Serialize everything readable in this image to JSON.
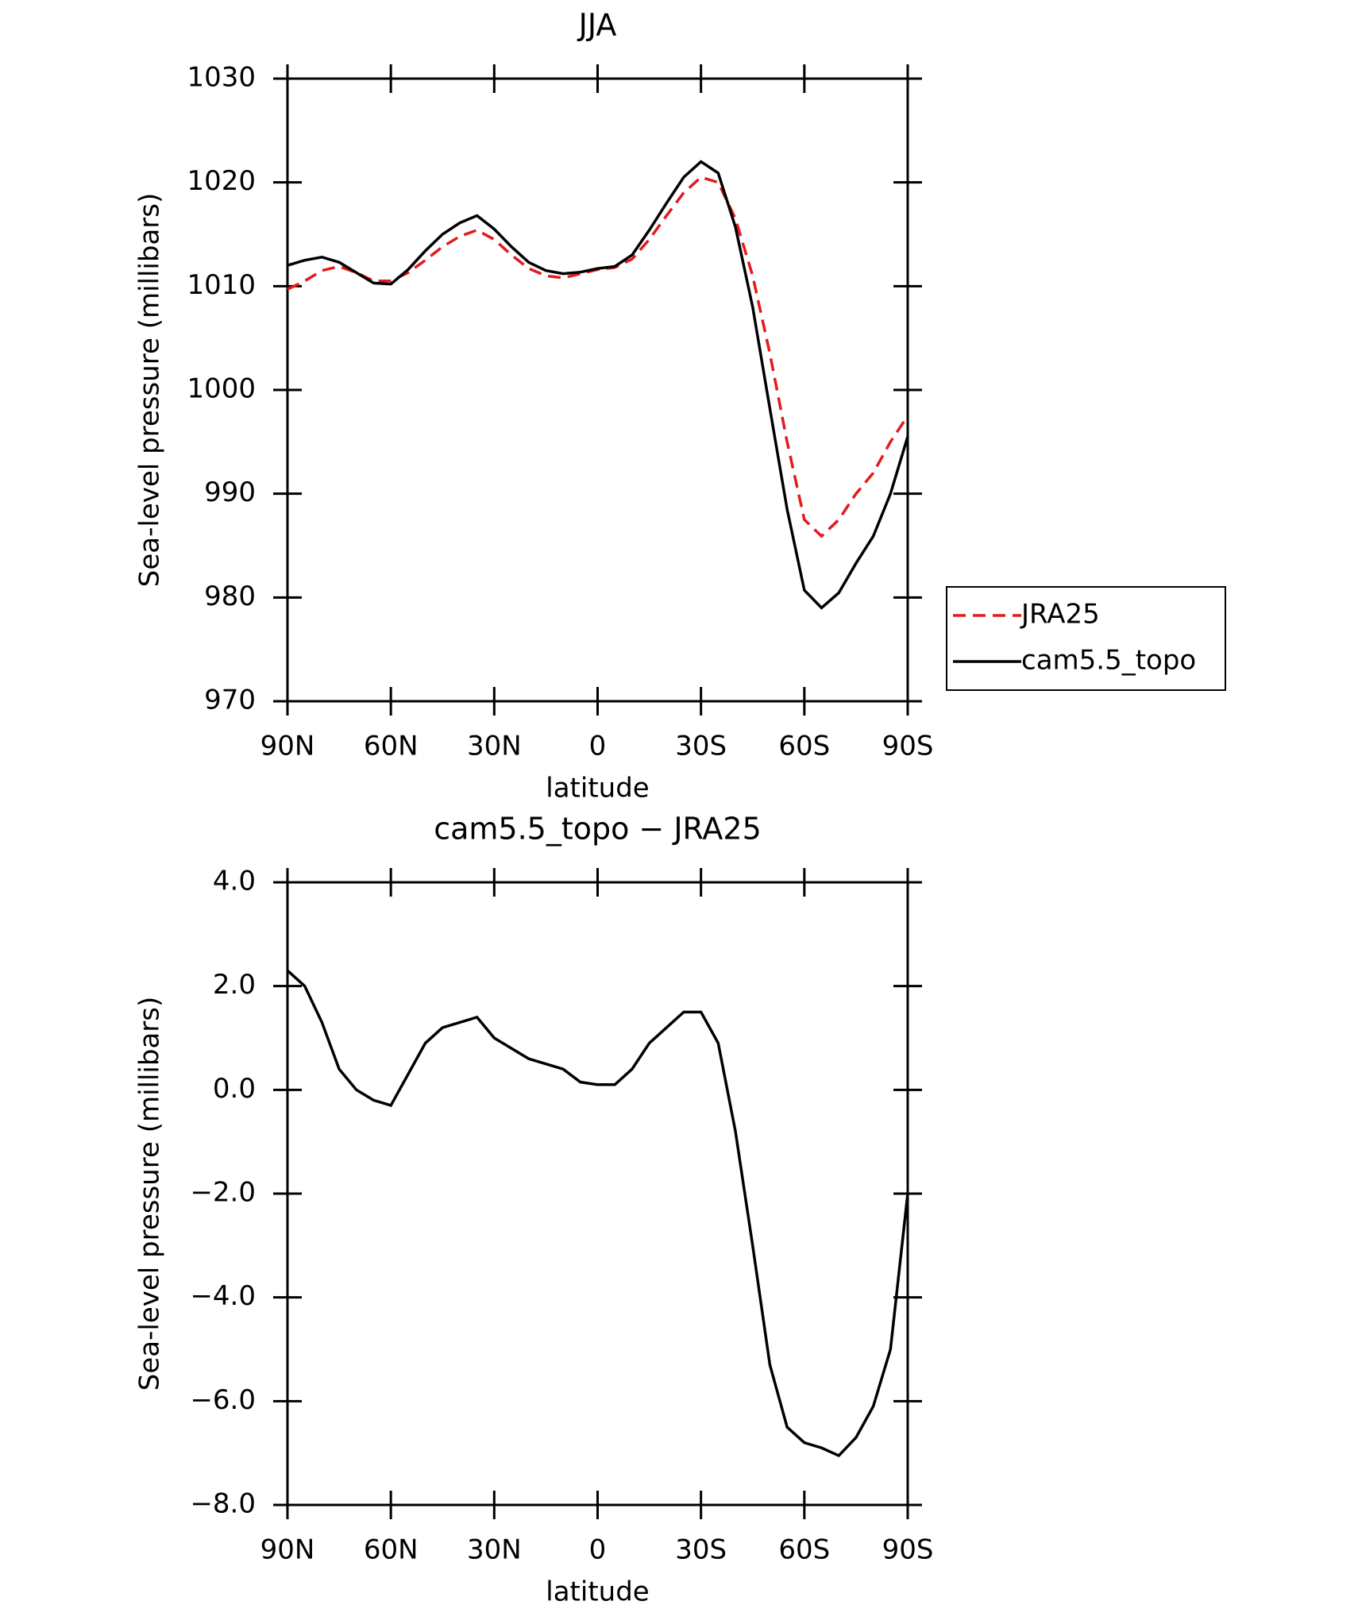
{
  "chart_data": [
    {
      "type": "line",
      "title": "JJA",
      "xlabel": "latitude",
      "ylabel": "Sea-level pressure (millibars)",
      "x": [
        90,
        85,
        80,
        75,
        70,
        65,
        60,
        55,
        50,
        45,
        40,
        35,
        30,
        25,
        20,
        15,
        10,
        5,
        0,
        -5,
        -10,
        -15,
        -20,
        -25,
        -30,
        -35,
        -40,
        -45,
        -50,
        -55,
        -60,
        -65,
        -70,
        -75,
        -80,
        -85,
        -90
      ],
      "xlim": [
        90,
        -90
      ],
      "xticks": [
        {
          "value": 90,
          "label": "90N"
        },
        {
          "value": 60,
          "label": "60N"
        },
        {
          "value": 30,
          "label": "30N"
        },
        0,
        {
          "value": -30,
          "label": "30S"
        },
        {
          "value": -60,
          "label": "60S"
        },
        {
          "value": -90,
          "label": "90S"
        }
      ],
      "ylim": [
        970,
        1030
      ],
      "yticks": [
        970,
        980,
        990,
        1000,
        1010,
        1020,
        1030
      ],
      "legend": "right-outside",
      "series": [
        {
          "name": "JRA25",
          "color": "#e41a1c",
          "style": "dashed",
          "values": [
            1009.7,
            1010.5,
            1011.5,
            1011.9,
            1011.3,
            1010.5,
            1010.5,
            1011.3,
            1012.5,
            1013.8,
            1014.8,
            1015.4,
            1014.5,
            1013.0,
            1011.7,
            1011.0,
            1010.8,
            1011.2,
            1011.6,
            1011.8,
            1012.6,
            1014.5,
            1016.8,
            1019.0,
            1020.5,
            1020.0,
            1016.5,
            1011.0,
            1003.5,
            995.0,
            987.5,
            985.9,
            987.5,
            990.0,
            992.0,
            995.0,
            997.5
          ]
        },
        {
          "name": "cam5.5_topo",
          "color": "#000000",
          "style": "solid",
          "values": [
            1012.0,
            1012.5,
            1012.8,
            1012.3,
            1011.3,
            1010.3,
            1010.2,
            1011.6,
            1013.4,
            1015.0,
            1016.1,
            1016.8,
            1015.5,
            1013.8,
            1012.3,
            1011.5,
            1011.2,
            1011.35,
            1011.7,
            1011.9,
            1013.0,
            1015.4,
            1018.0,
            1020.5,
            1022.0,
            1020.9,
            1015.7,
            1008.0,
            998.2,
            988.5,
            980.7,
            979.0,
            980.45,
            983.3,
            985.9,
            990.0,
            995.5
          ]
        }
      ]
    },
    {
      "type": "line",
      "title": "cam5.5_topo − JRA25",
      "xlabel": "latitude",
      "ylabel": "Sea-level pressure (millibars)",
      "x": [
        90,
        85,
        80,
        75,
        70,
        65,
        60,
        55,
        50,
        45,
        40,
        35,
        30,
        25,
        20,
        15,
        10,
        5,
        0,
        -5,
        -10,
        -15,
        -20,
        -25,
        -30,
        -35,
        -40,
        -45,
        -50,
        -55,
        -60,
        -65,
        -70,
        -75,
        -80,
        -85,
        -90
      ],
      "xlim": [
        90,
        -90
      ],
      "xticks": [
        {
          "value": 90,
          "label": "90N"
        },
        {
          "value": 60,
          "label": "60N"
        },
        {
          "value": 30,
          "label": "30N"
        },
        0,
        {
          "value": -30,
          "label": "30S"
        },
        {
          "value": -60,
          "label": "60S"
        },
        {
          "value": -90,
          "label": "90S"
        }
      ],
      "ylim": [
        -8,
        4
      ],
      "yticks": [
        {
          "value": -8,
          "label": "−8.0"
        },
        {
          "value": -6,
          "label": "−6.0"
        },
        {
          "value": -4,
          "label": "−4.0"
        },
        {
          "value": -2,
          "label": "−2.0"
        },
        {
          "value": 0,
          "label": "0.0"
        },
        {
          "value": 2,
          "label": "2.0"
        },
        {
          "value": 4,
          "label": "4.0"
        }
      ],
      "legend": "none",
      "series": [
        {
          "color": "#000000",
          "style": "solid",
          "values": [
            2.3,
            2.0,
            1.3,
            0.4,
            0.0,
            -0.2,
            -0.3,
            0.3,
            0.9,
            1.2,
            1.3,
            1.4,
            1.0,
            0.8,
            0.6,
            0.5,
            0.4,
            0.15,
            0.1,
            0.1,
            0.4,
            0.9,
            1.2,
            1.5,
            1.5,
            0.9,
            -0.8,
            -3.0,
            -5.3,
            -6.5,
            -6.8,
            -6.9,
            -7.05,
            -6.7,
            -6.1,
            -5.0,
            -2.0
          ]
        }
      ]
    }
  ]
}
